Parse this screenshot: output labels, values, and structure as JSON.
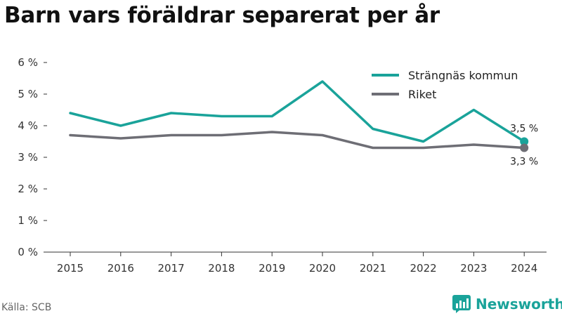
{
  "chart_data": {
    "type": "line",
    "title": "Barn vars föräldrar separerat per år",
    "x": [
      "2015",
      "2016",
      "2017",
      "2018",
      "2019",
      "2020",
      "2021",
      "2022",
      "2023",
      "2024"
    ],
    "series": [
      {
        "name": "Strängnäs kommun",
        "color": "#1aa39a",
        "values": [
          4.4,
          4.0,
          4.4,
          4.3,
          4.3,
          5.4,
          3.9,
          3.5,
          4.5,
          3.5
        ],
        "end_label": "3,5 %"
      },
      {
        "name": "Riket",
        "color": "#6e6e75",
        "values": [
          3.7,
          3.6,
          3.7,
          3.7,
          3.8,
          3.7,
          3.3,
          3.3,
          3.4,
          3.3
        ],
        "end_label": "3,3 %"
      }
    ],
    "y_ticks": [
      {
        "value": 0,
        "label": "0 %"
      },
      {
        "value": 1,
        "label": "1 %"
      },
      {
        "value": 2,
        "label": "2 %"
      },
      {
        "value": 3,
        "label": "3 %"
      },
      {
        "value": 4,
        "label": "4 %"
      },
      {
        "value": 5,
        "label": "5 %"
      },
      {
        "value": 6,
        "label": "6 %"
      }
    ],
    "ylim": [
      0,
      6
    ],
    "grid": false,
    "legend_position": "top-right"
  },
  "source": "Källa: SCB",
  "brand": {
    "name": "Newsworthy",
    "color": "#1aa39a",
    "icon": "newsworthy-logo-icon"
  }
}
